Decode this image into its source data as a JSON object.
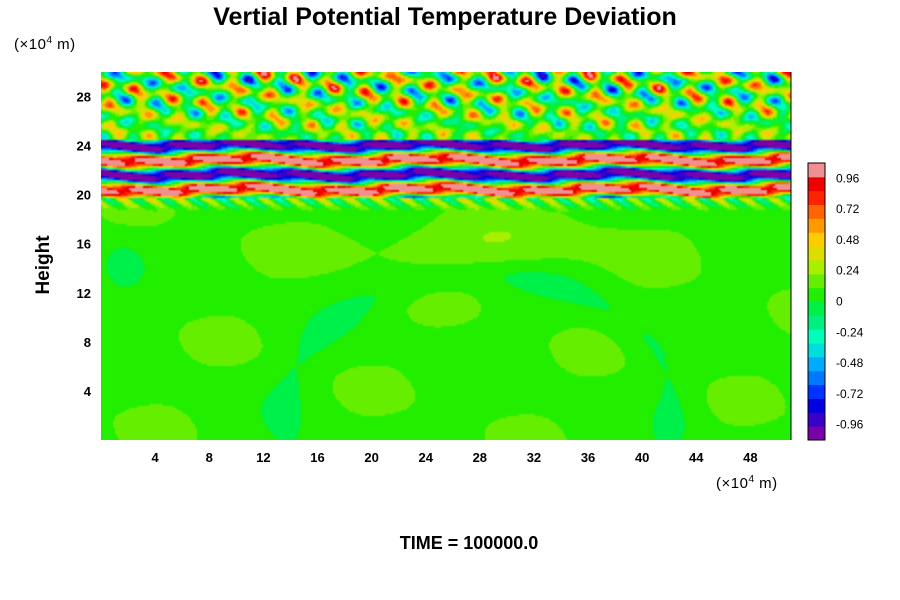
{
  "chart_data": {
    "type": "heatmap",
    "title": "Vertial Potential Temperature Deviation",
    "ylabel": "Height",
    "x_unit": {
      "prefix": "(×10",
      "exp": "4",
      "suffix": " m)"
    },
    "y_unit": {
      "prefix": "(×10",
      "exp": "4",
      "suffix": " m)"
    },
    "xlim": [
      0,
      51
    ],
    "ylim": [
      0,
      30
    ],
    "x_ticks": [
      4,
      8,
      12,
      16,
      20,
      24,
      28,
      32,
      36,
      40,
      44,
      48
    ],
    "y_ticks": [
      4,
      8,
      12,
      16,
      20,
      24,
      28
    ],
    "colorbar": {
      "range": [
        -1.08,
        1.08
      ],
      "ticks": [
        -0.96,
        -0.72,
        -0.48,
        -0.24,
        0,
        0.24,
        0.48,
        0.72,
        0.96
      ],
      "colors": [
        "#7a00a8",
        "#3a00c8",
        "#0000e0",
        "#0033ff",
        "#0077ff",
        "#00aaff",
        "#00dddd",
        "#00ffbb",
        "#00f080",
        "#00f04a",
        "#22ee00",
        "#66ee00",
        "#aaee00",
        "#dddd00",
        "#ffcc00",
        "#ff9900",
        "#ff6600",
        "#ff2200",
        "#ee0000",
        "#f09090"
      ]
    },
    "field_description": {
      "background_value": 0.08,
      "upper_bands_height": [
        19.8,
        24.5
      ],
      "wave_region_height": [
        24.5,
        30
      ]
    },
    "footer": "TIME = 100000.0"
  }
}
